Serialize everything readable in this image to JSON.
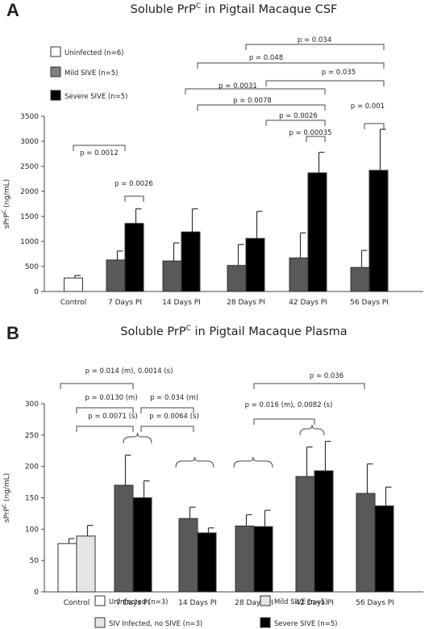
{
  "panels": {
    "a": {
      "letter": "A",
      "title": "Soluble PrP",
      "title_sup": "C",
      "title_rest": " in Pigtail Macaque CSF"
    },
    "b": {
      "letter": "B",
      "title": "Soluble PrP",
      "title_sup": "C",
      "title_rest": " in Pigtail Macaque Plasma"
    }
  },
  "chart_data": [
    {
      "type": "bar",
      "categories": [
        "Control",
        "7 Days PI",
        "14 Days PI",
        "28 Days PI",
        "42 Days PI",
        "56 Days PI"
      ],
      "ylabel": "sPrP",
      "ylabel_sup": "C",
      "ylabel_rest": " (ng/mL)",
      "ylim": [
        0,
        3500
      ],
      "yticks": [
        0,
        500,
        1000,
        1500,
        2000,
        2500,
        3000,
        3500
      ],
      "colors": {
        "Uninfected": "#ffffff",
        "Mild SIVE": "#595959",
        "Severe SIVE": "#000000"
      },
      "legend": [
        {
          "label": "Uninfected (n=6)",
          "color": "#ffffff"
        },
        {
          "label": "Mild SIVE (n=5)",
          "color": "#7f7f7f"
        },
        {
          "label": "Severe SIVE (n=5)",
          "color": "#000000"
        }
      ],
      "series": [
        {
          "name": "Uninfected (n=6)",
          "values": [
            270,
            null,
            null,
            null,
            null,
            null
          ],
          "errors": [
            50,
            null,
            null,
            null,
            null,
            null
          ]
        },
        {
          "name": "Mild SIVE (n=5)",
          "values": [
            null,
            630,
            610,
            520,
            670,
            480
          ],
          "errors": [
            null,
            180,
            360,
            420,
            500,
            340
          ]
        },
        {
          "name": "Severe SIVE (n=5)",
          "values": [
            null,
            1360,
            1190,
            1060,
            2370,
            2420
          ],
          "errors": [
            null,
            290,
            460,
            540,
            410,
            820
          ]
        }
      ],
      "annotations": [
        {
          "text": "p = 0.034"
        },
        {
          "text": "p = 0.048"
        },
        {
          "text": "p = 0.035"
        },
        {
          "text": "p = 0.0031"
        },
        {
          "text": "p = 0.0078"
        },
        {
          "text": "p = 0.0026"
        },
        {
          "text": "p = 0.00035"
        },
        {
          "text": "p = 0.001"
        },
        {
          "text": "p = 0.0012"
        },
        {
          "text": "p = 0.0026"
        }
      ]
    },
    {
      "type": "bar",
      "categories": [
        "Control",
        "7 Days PI",
        "14 Days PI",
        "28 Days PI",
        "42 Days PI",
        "56 Days PI"
      ],
      "ylabel": "sPrP",
      "ylabel_sup": "C",
      "ylabel_rest": " (ng/mL)",
      "ylim": [
        0,
        300
      ],
      "yticks": [
        0,
        50,
        100,
        150,
        200,
        250,
        300
      ],
      "colors": {
        "Uninfected": "#ffffff",
        "SIV Infected, no SIVE": "#e6e6e6",
        "Mild SIVE": "#595959",
        "Severe SIVE": "#000000"
      },
      "legend": [
        {
          "label": "Uninfected (n=3)",
          "color": "#ffffff"
        },
        {
          "label": "Mild SIVE (n=5)",
          "color": "#e6e6e6"
        },
        {
          "label": "SIV Infected, no SIVE (n=3)",
          "color": "#e6e6e6"
        },
        {
          "label": "Severe SIVE (n=5)",
          "color": "#000000"
        }
      ],
      "series": [
        {
          "name": "Uninfected (n=3)",
          "values": [
            77,
            null,
            null,
            null,
            null,
            null
          ],
          "errors": [
            8,
            null,
            null,
            null,
            null,
            null
          ]
        },
        {
          "name": "SIV Infected, no SIVE (n=3)",
          "values": [
            89,
            null,
            null,
            null,
            null,
            null
          ],
          "errors": [
            17,
            null,
            null,
            null,
            null,
            null
          ]
        },
        {
          "name": "Mild SIVE (n=5)",
          "values": [
            null,
            170,
            117,
            105,
            184,
            157
          ],
          "errors": [
            null,
            48,
            18,
            18,
            47,
            47
          ]
        },
        {
          "name": "Severe SIVE (n=5)",
          "values": [
            null,
            150,
            94,
            104,
            193,
            137
          ],
          "errors": [
            null,
            27,
            8,
            26,
            47,
            30
          ]
        }
      ],
      "annotations": [
        {
          "text": "p = 0.014 (m), 0.0014 (s)"
        },
        {
          "text": "p = 0.0130 (m)"
        },
        {
          "text": "p = 0.0071 (s)"
        },
        {
          "text": "p = 0.034 (m)"
        },
        {
          "text": "p = 0.0064 (s)"
        },
        {
          "text": "p = 0.036"
        },
        {
          "text": "p = 0.016 (m), 0.0082 (s)"
        }
      ]
    }
  ]
}
